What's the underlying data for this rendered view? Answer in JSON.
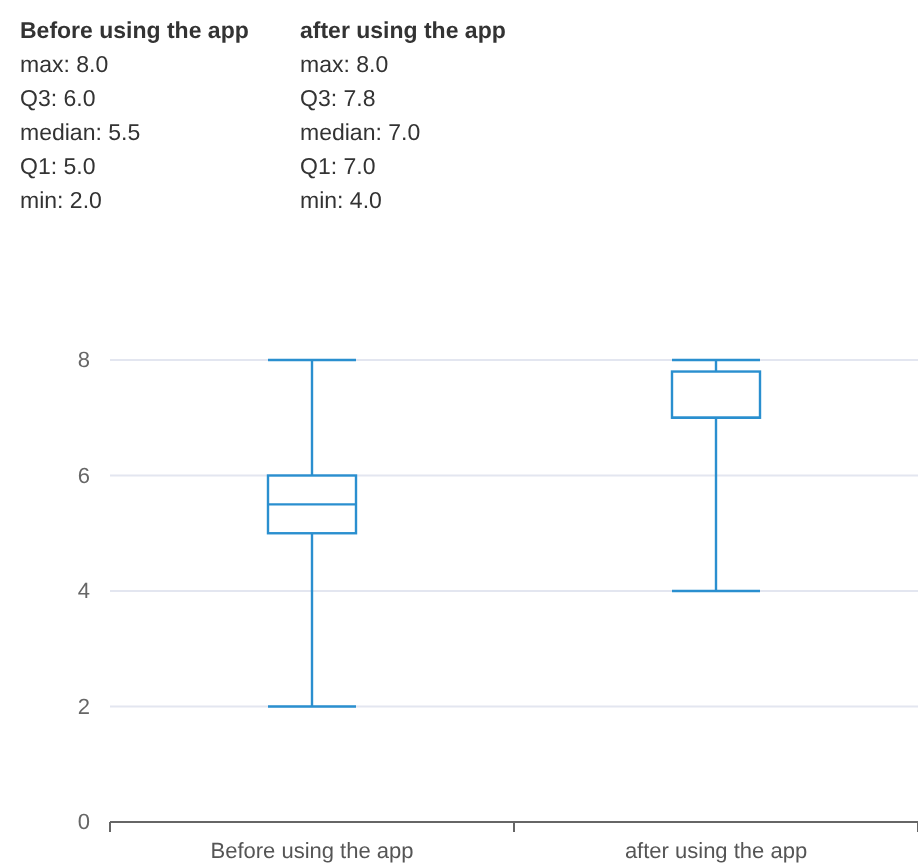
{
  "chart_data": {
    "type": "box",
    "categories": [
      "Before using the app",
      "after using the app"
    ],
    "boxes": [
      {
        "low": 2.0,
        "q1": 5.0,
        "median": 5.5,
        "q3": 6.0,
        "high": 8.0
      },
      {
        "low": 4.0,
        "q1": 7.0,
        "median": 7.0,
        "q3": 7.8,
        "high": 8.0
      }
    ],
    "color": "#2a8fcf",
    "ylim": [
      0,
      8
    ],
    "yticks": [
      0,
      2,
      4,
      6,
      8
    ],
    "grid": "y",
    "annotations": [
      "Before using the app\nmax: 8.0\nQ3: 6.0\nmedian: 5.5\nQ1: 5.0\nmin: 2.0",
      "after using the app\nmax: 8.0\nQ3: 7.8\nmedian: 7.0\nQ1: 7.0\nmin: 4.0"
    ]
  }
}
